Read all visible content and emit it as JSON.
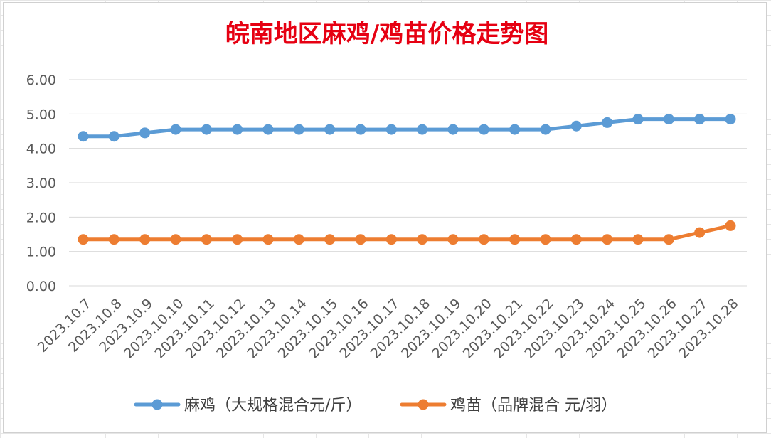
{
  "chart_data": {
    "type": "line",
    "title": "皖南地区麻鸡/鸡苗价格走势图",
    "xlabel": "",
    "ylabel": "",
    "ylim": [
      0,
      6
    ],
    "yticks": [
      "0.00",
      "1.00",
      "2.00",
      "3.00",
      "4.00",
      "5.00",
      "6.00"
    ],
    "grid": "horizontal",
    "legend_position": "bottom",
    "categories": [
      "2023.10.7",
      "2023.10.8",
      "2023.10.9",
      "2023.10.10",
      "2023.10.11",
      "2023.10.12",
      "2023.10.13",
      "2023.10.14",
      "2023.10.15",
      "2023.10.16",
      "2023.10.17",
      "2023.10.18",
      "2023.10.19",
      "2023.10.20",
      "2023.10.21",
      "2023.10.22",
      "2023.10.23",
      "2023.10.24",
      "2023.10.25",
      "2023.10.26",
      "2023.10.27",
      "2023.10.28"
    ],
    "series": [
      {
        "name": "麻鸡（大规格混合元/斤）",
        "color": "#5b9bd5",
        "values": [
          4.35,
          4.35,
          4.45,
          4.55,
          4.55,
          4.55,
          4.55,
          4.55,
          4.55,
          4.55,
          4.55,
          4.55,
          4.55,
          4.55,
          4.55,
          4.55,
          4.65,
          4.75,
          4.85,
          4.85,
          4.85,
          4.85
        ]
      },
      {
        "name": "鸡苗（品牌混合 元/羽）",
        "color": "#ed7d31",
        "values": [
          1.35,
          1.35,
          1.35,
          1.35,
          1.35,
          1.35,
          1.35,
          1.35,
          1.35,
          1.35,
          1.35,
          1.35,
          1.35,
          1.35,
          1.35,
          1.35,
          1.35,
          1.35,
          1.35,
          1.35,
          1.55,
          1.75
        ]
      }
    ]
  }
}
